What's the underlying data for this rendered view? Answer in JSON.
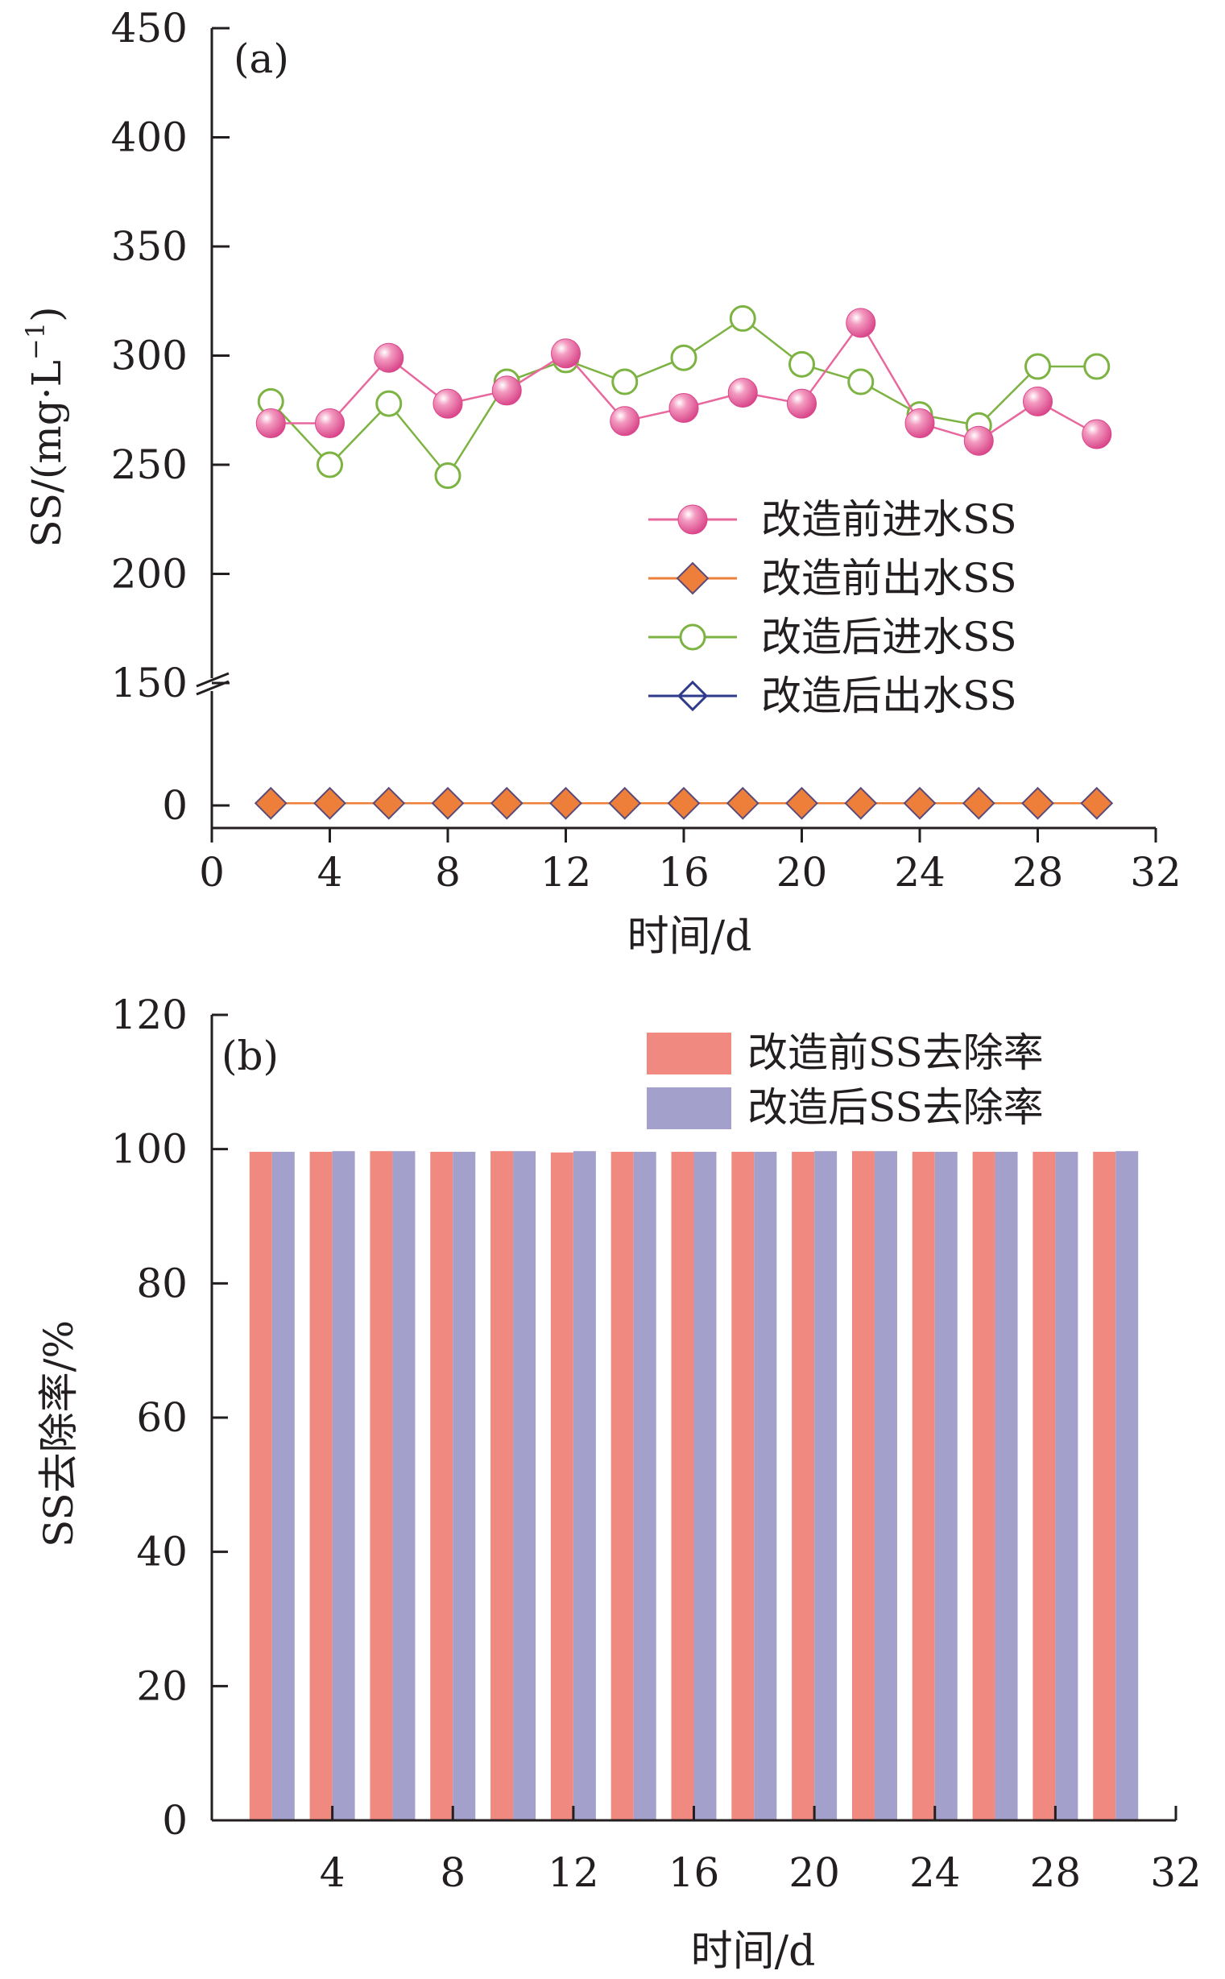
{
  "chart_data": [
    {
      "type": "line",
      "panel_label": "(a)",
      "xlabel": "时间/d",
      "ylabel_main": "SS/(mg·L",
      "ylabel_sup": "−1",
      "ylabel_close": ")",
      "xlim": [
        0,
        32
      ],
      "x_ticks": [
        0,
        4,
        8,
        12,
        16,
        20,
        24,
        28,
        32
      ],
      "y_ticks_upper": [
        150,
        200,
        250,
        300,
        350,
        400,
        450
      ],
      "y_ticks_lower": [
        0
      ],
      "axis_break": "between 0 and 150",
      "legend_position": "right",
      "x": [
        2,
        4,
        6,
        8,
        10,
        12,
        14,
        16,
        18,
        20,
        22,
        24,
        26,
        28,
        30
      ],
      "series": [
        {
          "name": "改造前进水SS",
          "color": "#e8689e",
          "marker": "filled-sphere",
          "values": [
            269,
            269,
            299,
            278,
            284,
            301,
            270,
            276,
            283,
            278,
            315,
            269,
            261,
            279,
            264
          ]
        },
        {
          "name": "改造前出水SS",
          "color": "#ee7f3a",
          "marker": "filled-diamond",
          "values": [
            1,
            1,
            1,
            1,
            1,
            1,
            1,
            1,
            1,
            1,
            1,
            1,
            1,
            1,
            1
          ]
        },
        {
          "name": "改造后进水SS",
          "color": "#7cb342",
          "marker": "open-circle",
          "values": [
            279,
            250,
            278,
            245,
            288,
            298,
            288,
            299,
            317,
            296,
            288,
            273,
            268,
            295,
            295
          ]
        },
        {
          "name": "改造后出水SS",
          "color": "#2e3a8c",
          "marker": "open-diamond",
          "values": [
            1,
            1,
            1,
            1,
            1,
            1,
            1,
            1,
            1,
            1,
            1,
            1,
            1,
            1,
            1
          ]
        }
      ]
    },
    {
      "type": "bar",
      "panel_label": "(b)",
      "xlabel": "时间/d",
      "ylabel": "SS去除率/%",
      "ylim": [
        0,
        120
      ],
      "x_ticks": [
        4,
        8,
        12,
        16,
        20,
        24,
        28,
        32
      ],
      "y_ticks": [
        0,
        20,
        40,
        60,
        80,
        100,
        120
      ],
      "legend_position": "top-right",
      "categories": [
        2,
        4,
        6,
        8,
        10,
        12,
        14,
        16,
        18,
        20,
        22,
        24,
        26,
        28,
        30
      ],
      "series": [
        {
          "name": "改造前SS去除率",
          "color": "#f08a80",
          "values": [
            99.6,
            99.6,
            99.7,
            99.6,
            99.7,
            99.5,
            99.6,
            99.6,
            99.6,
            99.6,
            99.7,
            99.6,
            99.6,
            99.6,
            99.6
          ]
        },
        {
          "name": "改造后SS去除率",
          "color": "#a3a0cb",
          "values": [
            99.6,
            99.7,
            99.7,
            99.6,
            99.7,
            99.7,
            99.6,
            99.6,
            99.6,
            99.7,
            99.7,
            99.6,
            99.6,
            99.6,
            99.7
          ]
        }
      ]
    }
  ]
}
